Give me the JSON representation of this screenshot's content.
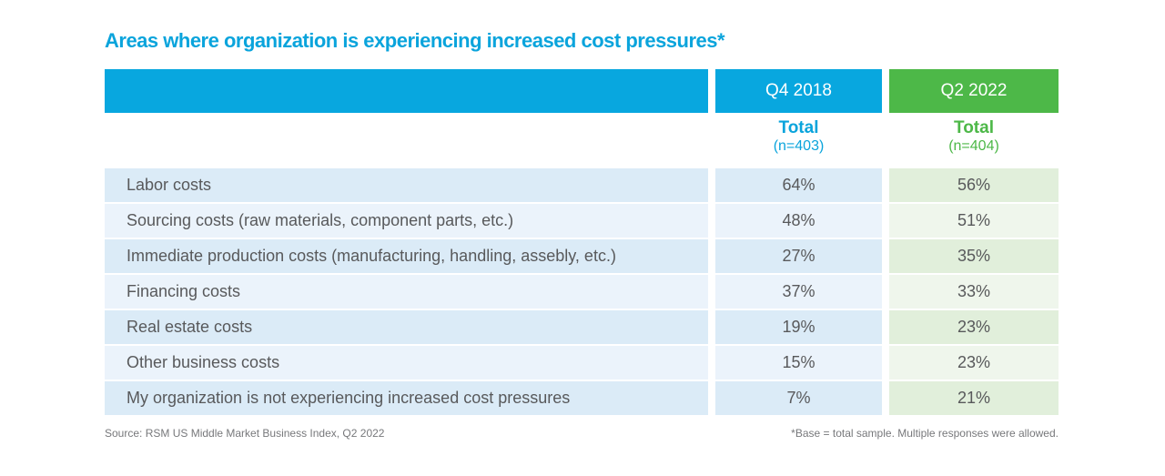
{
  "title": "Areas where organization is experiencing increased cost pressures*",
  "colors": {
    "blue": "#08a7df",
    "green": "#4db848",
    "blue_row_dark": "#dbebf7",
    "blue_row_light": "#ebf3fb",
    "green_row_dark": "#e1efdb",
    "green_row_light": "#eff6ec",
    "text": "#58595b"
  },
  "chart_data": {
    "type": "table",
    "title": "Areas where organization is experiencing increased cost pressures*",
    "columns": [
      {
        "period": "Q4 2018",
        "label": "Total",
        "n": "(n=403)"
      },
      {
        "period": "Q2 2022",
        "label": "Total",
        "n": "(n=404)"
      }
    ],
    "rows": [
      {
        "label": "Labor costs",
        "values": [
          "64%",
          "56%"
        ]
      },
      {
        "label": "Sourcing costs (raw materials, component parts, etc.)",
        "values": [
          "48%",
          "51%"
        ]
      },
      {
        "label": "Immediate production costs (manufacturing, handling, assebly, etc.)",
        "values": [
          "27%",
          "35%"
        ]
      },
      {
        "label": "Financing costs",
        "values": [
          "37%",
          "33%"
        ]
      },
      {
        "label": "Real estate costs",
        "values": [
          "19%",
          "23%"
        ]
      },
      {
        "label": "Other business costs",
        "values": [
          "15%",
          "23%"
        ]
      },
      {
        "label": "My organization is not experiencing increased cost pressures",
        "values": [
          "7%",
          "21%"
        ]
      }
    ]
  },
  "footer": {
    "source": "Source: RSM US Middle Market Business Index, Q2 2022",
    "note": "*Base = total sample. Multiple responses were allowed."
  }
}
